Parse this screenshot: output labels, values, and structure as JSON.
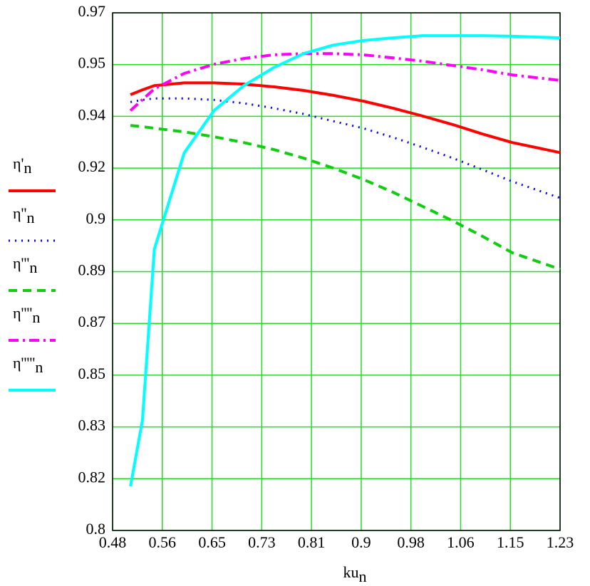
{
  "chart_data": {
    "type": "line",
    "x_label": "kun",
    "x": [
      0.51,
      0.53,
      0.55,
      0.6,
      0.65,
      0.7,
      0.75,
      0.8,
      0.85,
      0.9,
      0.95,
      1.0,
      1.05,
      1.1,
      1.15,
      1.23
    ],
    "series": [
      {
        "name": "η'n",
        "color": "#ff0000",
        "line_style": "solid",
        "width": 4,
        "values": [
          0.9431,
          0.9447,
          0.9461,
          0.947,
          0.947,
          0.9466,
          0.9457,
          0.9445,
          0.9429,
          0.941,
          0.9387,
          0.9361,
          0.9333,
          0.9302,
          0.9274,
          0.9241
        ]
      },
      {
        "name": "η''n",
        "color": "#0000ff",
        "line_style": "dotted",
        "width": 3,
        "values": [
          0.9407,
          0.9414,
          0.9419,
          0.9419,
          0.9414,
          0.9403,
          0.9387,
          0.9368,
          0.9344,
          0.9321,
          0.9291,
          0.9258,
          0.9223,
          0.9185,
          0.9146,
          0.9092
        ]
      },
      {
        "name": "η'''n",
        "color": "#11cc11",
        "line_style": "dashed",
        "width": 4,
        "values": [
          0.933,
          0.9326,
          0.9321,
          0.9309,
          0.9293,
          0.9274,
          0.9251,
          0.9223,
          0.919,
          0.9153,
          0.9111,
          0.9064,
          0.9017,
          0.8966,
          0.8912,
          0.8858
        ]
      },
      {
        "name": "η''''n",
        "color": "#ff00ff",
        "line_style": "dashdot",
        "width": 4,
        "values": [
          0.9379,
          0.9415,
          0.945,
          0.9501,
          0.9531,
          0.955,
          0.9562,
          0.9566,
          0.9566,
          0.9562,
          0.9552,
          0.9541,
          0.9527,
          0.9513,
          0.9496,
          0.9478
        ]
      },
      {
        "name": "η'''''n",
        "color": "#00ffff",
        "line_style": "solid",
        "width": 4,
        "values": [
          0.8145,
          0.8362,
          0.8924,
          0.924,
          0.9379,
          0.9461,
          0.952,
          0.9566,
          0.9594,
          0.9609,
          0.9618,
          0.9625,
          0.9625,
          0.9625,
          0.9623,
          0.9618
        ]
      }
    ],
    "xlim": [
      0.48,
      1.23
    ],
    "xticks": [
      0.48,
      {
        "value": 0.5633,
        "label": "0.56"
      },
      {
        "value": 0.6467,
        "label": "0.65"
      },
      0.73,
      {
        "value": 0.8133,
        "label": "0.81"
      },
      {
        "value": 0.8967,
        "label": "0.9"
      },
      0.98,
      {
        "value": 1.0633,
        "label": "1.06"
      },
      {
        "value": 1.1467,
        "label": "1.15"
      },
      1.23
    ],
    "ylim": [
      0.8,
      0.97
    ],
    "yticks": [
      0.8,
      {
        "value": 0.817,
        "label": "0.82"
      },
      {
        "value": 0.834,
        "label": "0.83"
      },
      {
        "value": 0.851,
        "label": "0.85"
      },
      {
        "value": 0.868,
        "label": "0.87"
      },
      {
        "value": 0.885,
        "label": "0.89"
      },
      {
        "value": 0.902,
        "label": "0.9"
      },
      {
        "value": 0.919,
        "label": "0.92"
      },
      {
        "value": 0.936,
        "label": "0.94"
      },
      {
        "value": 0.953,
        "label": "0.95"
      },
      0.97
    ],
    "grid": true,
    "legend": "left"
  }
}
